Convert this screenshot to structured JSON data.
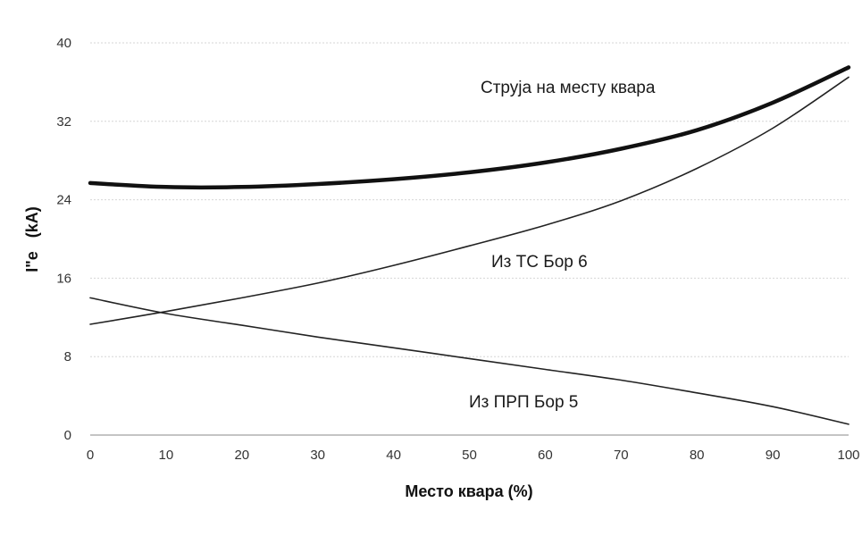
{
  "chart_data": {
    "type": "line",
    "xlabel": "Место квара (%)",
    "ylabel": "I\"е   (kA)",
    "xlim": [
      0,
      100
    ],
    "ylim": [
      0,
      40
    ],
    "x_ticks": [
      "0",
      "10",
      "20",
      "30",
      "40",
      "50",
      "60",
      "70",
      "80",
      "90",
      "100"
    ],
    "y_ticks": [
      "0",
      "8",
      "16",
      "24",
      "32",
      "40"
    ],
    "grid": true,
    "x": [
      0,
      10,
      20,
      30,
      40,
      50,
      60,
      70,
      80,
      90,
      100
    ],
    "series": [
      {
        "name": "Струја на месту квара",
        "values": [
          25.7,
          25.3,
          25.3,
          25.6,
          26.1,
          26.8,
          27.8,
          29.2,
          31.1,
          33.9,
          37.5
        ],
        "color": "#111111",
        "style": "thick"
      },
      {
        "name": "Из ТС Бор 6",
        "values": [
          11.3,
          12.6,
          14.0,
          15.5,
          17.3,
          19.3,
          21.4,
          23.9,
          27.2,
          31.3,
          36.5
        ],
        "color": "#222222",
        "style": "thin"
      },
      {
        "name": "Из ПРП Бор 5",
        "values": [
          14.0,
          12.4,
          11.2,
          10.0,
          8.9,
          7.8,
          6.7,
          5.6,
          4.3,
          2.9,
          1.1
        ],
        "color": "#222222",
        "style": "thin"
      }
    ]
  }
}
